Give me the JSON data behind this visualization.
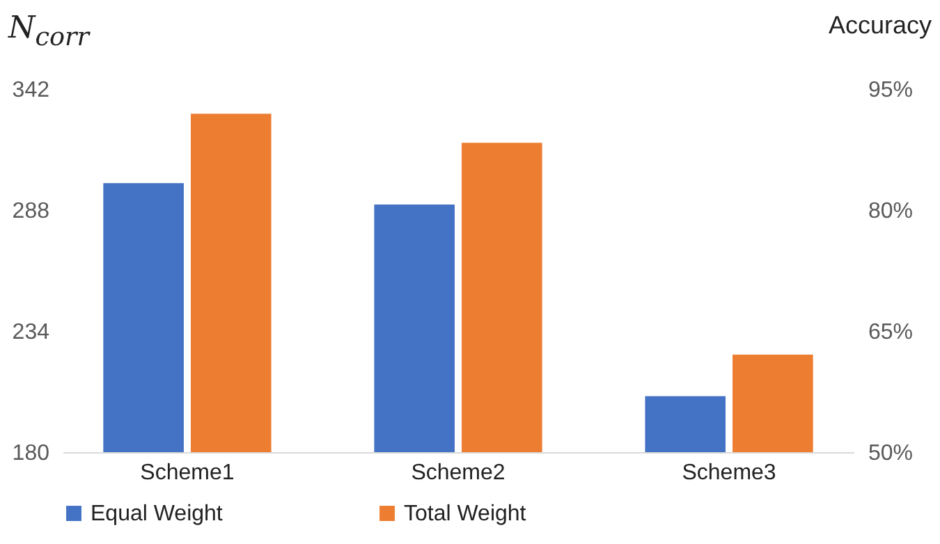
{
  "chart_data": {
    "type": "bar",
    "ylabel": "N$_{corr}$",
    "y2label": "Accuracy",
    "categories": [
      "Scheme1",
      "Scheme2",
      "Scheme3"
    ],
    "series": [
      {
        "name": "Equal Weight",
        "color": "#4472c4",
        "values": [
          300,
          290.5,
          205
        ]
      },
      {
        "name": "Total Weight",
        "color": "#ed7d31",
        "values": [
          331,
          318,
          223.5
        ]
      }
    ],
    "ylim": [
      180,
      342
    ],
    "yticks": [
      180,
      234,
      288,
      342
    ],
    "y2lim": [
      50,
      95
    ],
    "y2ticks": [
      {
        "value": 50,
        "label": "50%"
      },
      {
        "value": 65,
        "label": "65%"
      },
      {
        "value": 80,
        "label": "80%"
      },
      {
        "value": 95,
        "label": "95%"
      }
    ],
    "grid": false,
    "legend": "bottom"
  }
}
